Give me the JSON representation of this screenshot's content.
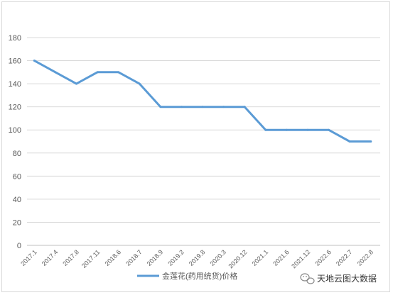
{
  "chart_data": {
    "type": "line",
    "title": "",
    "xlabel": "",
    "ylabel": "",
    "ylim": [
      0,
      180
    ],
    "yticks": [
      0,
      20,
      40,
      60,
      80,
      100,
      120,
      140,
      160,
      180
    ],
    "grid": true,
    "legend_position": "bottom",
    "categories": [
      "2017.1",
      "2017.4",
      "2017.8",
      "2017.11",
      "2018.6",
      "2018.7",
      "2018.9",
      "2019.2",
      "2019.8",
      "2020.3",
      "2020.12",
      "2021.1",
      "2021.6",
      "2021.12",
      "2022.6",
      "2022.7",
      "2022.8"
    ],
    "series": [
      {
        "name": "金莲花(药用统货)价格",
        "color": "#5b9bd5",
        "values": [
          160,
          150,
          140,
          150,
          150,
          140,
          120,
          120,
          120,
          120,
          120,
          100,
          100,
          100,
          100,
          90,
          90
        ]
      }
    ]
  },
  "watermark": {
    "text": "天地云图大数据",
    "icon": "wechat-icon"
  }
}
